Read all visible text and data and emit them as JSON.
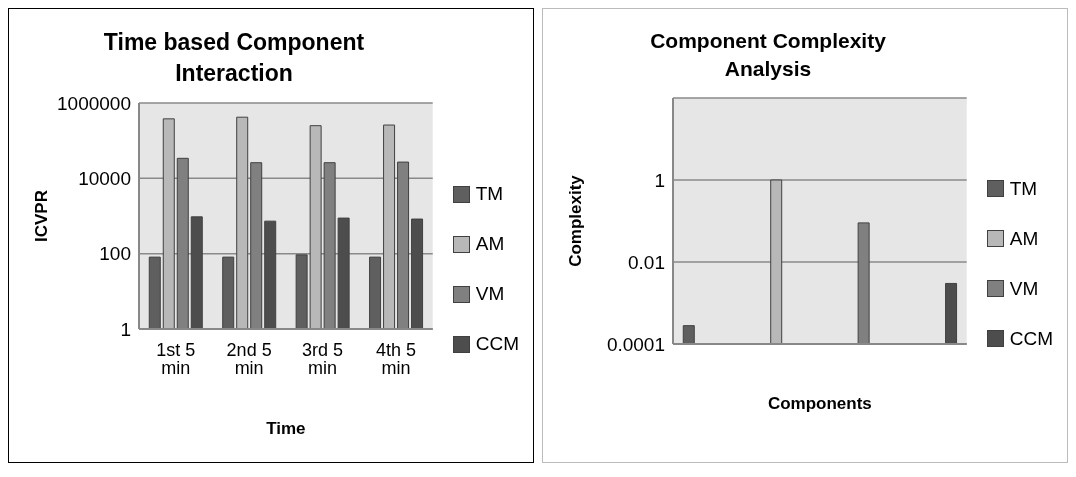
{
  "chart_data": [
    {
      "type": "bar",
      "title": "Time based Component Interaction",
      "xlabel": "Time",
      "ylabel": "ICVPR",
      "categories": [
        "1st 5 min",
        "2nd 5 min",
        "3rd 5 min",
        "4th 5 min"
      ],
      "series": [
        {
          "name": "TM",
          "color": "#5f5f5f",
          "values": [
            81,
            81,
            93,
            81
          ]
        },
        {
          "name": "AM",
          "color": "#b8b8b8",
          "values": [
            380000,
            420000,
            250000,
            260000
          ]
        },
        {
          "name": "VM",
          "color": "#808080",
          "values": [
            34000,
            26000,
            26000,
            27000
          ]
        },
        {
          "name": "CCM",
          "color": "#4d4d4d",
          "values": [
            950,
            730,
            880,
            830
          ]
        }
      ],
      "log": "y",
      "ylim": [
        1,
        1000000
      ],
      "yticks": [
        1,
        100,
        10000,
        1000000
      ],
      "grid": "y",
      "legend": "right"
    },
    {
      "type": "bar",
      "title": "Component Complexity Analysis",
      "xlabel": "Components",
      "ylabel": "Complexity",
      "categories": [
        null,
        null,
        null,
        null
      ],
      "series": [
        {
          "name": "TM",
          "color": "#5f5f5f",
          "values": [
            0.00028,
            null,
            null,
            null
          ]
        },
        {
          "name": "AM",
          "color": "#b8b8b8",
          "values": [
            null,
            1,
            null,
            null
          ]
        },
        {
          "name": "VM",
          "color": "#808080",
          "values": [
            null,
            null,
            0.09,
            null
          ]
        },
        {
          "name": "CCM",
          "color": "#4d4d4d",
          "values": [
            null,
            null,
            null,
            0.003
          ]
        }
      ],
      "log": "y",
      "ylim": [
        0.0001,
        100
      ],
      "yticks": [
        0.0001,
        0.01,
        1
      ],
      "grid": "y",
      "legend": "right"
    }
  ]
}
